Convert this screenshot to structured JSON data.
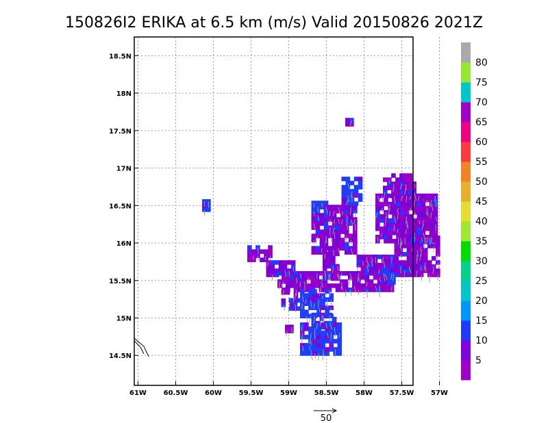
{
  "chart_data": {
    "type": "heatmap",
    "title": "150826I2 ERIKA at 6.5 km (m/s) Valid 20150826  2021Z",
    "x_ticks": [
      "61W",
      "60.5W",
      "60W",
      "59.5W",
      "59W",
      "58.5W",
      "58W",
      "57.5W",
      "57W"
    ],
    "x_tick_values": [
      -61,
      -60.5,
      -60,
      -59.5,
      -59,
      -58.5,
      -58,
      -57.5,
      -57
    ],
    "y_ticks": [
      "14.5N",
      "15N",
      "15.5N",
      "16N",
      "16.5N",
      "17N",
      "17.5N",
      "18N",
      "18.5N"
    ],
    "y_tick_values": [
      14.5,
      15,
      15.5,
      16,
      16.5,
      17,
      17.5,
      18,
      18.5
    ],
    "xlim": [
      -61.05,
      -57.35
    ],
    "ylim": [
      14.1,
      18.75
    ],
    "grid": true,
    "colorbar": {
      "labels": [
        "5",
        "10",
        "15",
        "20",
        "25",
        "30",
        "35",
        "40",
        "45",
        "50",
        "55",
        "60",
        "65",
        "70",
        "75",
        "80"
      ],
      "colors": [
        "#a000c8",
        "#8200dc",
        "#1e3cff",
        "#0096ff",
        "#00c8c8",
        "#00d28c",
        "#00dc00",
        "#a0e632",
        "#e6dc32",
        "#e6af2d",
        "#f08228",
        "#fa3c3c",
        "#f00082",
        "#a000c8",
        "#00c8c8",
        "#96e632",
        "#aaaaaa"
      ]
    },
    "vector_scale_label": "50",
    "regions": [
      {
        "name": "central purple mass",
        "lon": [
          -58.7,
          -58.1
        ],
        "lat": [
          15.9,
          16.5
        ],
        "level": "purple"
      },
      {
        "name": "eastern purple mass",
        "lon": [
          -57.85,
          -57.0
        ],
        "lat": [
          15.6,
          16.75
        ],
        "level": "purple"
      },
      {
        "name": "southern blue core",
        "lon": [
          -58.85,
          -58.35
        ],
        "lat": [
          14.45,
          15.35
        ],
        "level": "blue"
      },
      {
        "name": "western band",
        "lon": [
          -59.55,
          -58.9
        ],
        "lat": [
          15.3,
          15.95
        ],
        "level": "purple"
      }
    ]
  }
}
